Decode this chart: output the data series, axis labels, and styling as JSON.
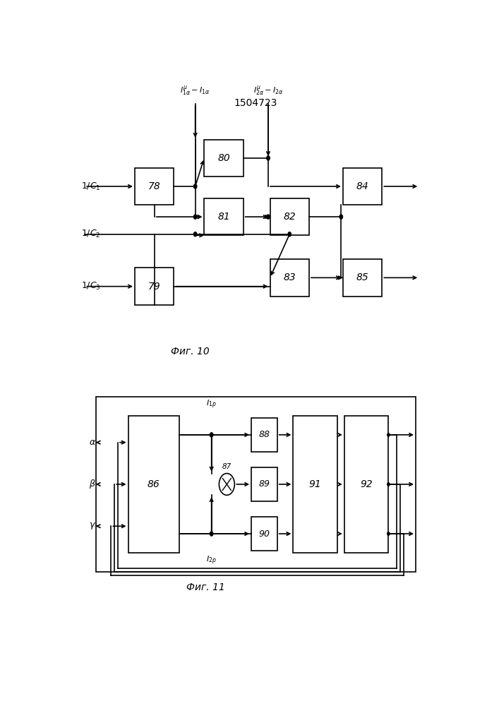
{
  "title": "1504723",
  "fig10_caption": "Фиг. 10",
  "fig11_caption": "Фиг. 11",
  "bg_color": "#ffffff"
}
